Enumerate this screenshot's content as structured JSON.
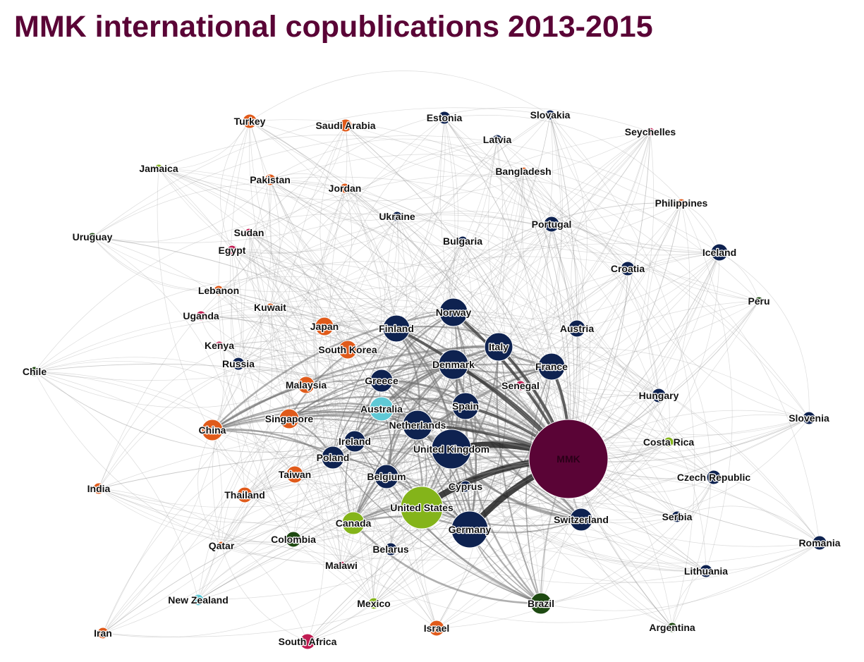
{
  "title": "MMK international copublications 2013-2015",
  "colors": {
    "hub": "#5a0436",
    "europe": "#0e2250",
    "asia": "#e05a1a",
    "americas_north": "#84b41a",
    "americas_south": "#1e4a12",
    "africa": "#c01c52",
    "oceania": "#5fc9d6"
  },
  "nodes": [
    {
      "id": "mmk",
      "label": "MMK",
      "group": "hub",
      "size": 56
    },
    {
      "id": "uk",
      "label": "United Kingdom",
      "group": "europe",
      "size": 28
    },
    {
      "id": "germany",
      "label": "Germany",
      "group": "europe",
      "size": 26
    },
    {
      "id": "us",
      "label": "United States",
      "group": "americas_north",
      "size": 30
    },
    {
      "id": "netherlands",
      "label": "Netherlands",
      "group": "europe",
      "size": 21
    },
    {
      "id": "norway",
      "label": "Norway",
      "group": "europe",
      "size": 20
    },
    {
      "id": "denmark",
      "label": "Denmark",
      "group": "europe",
      "size": 21
    },
    {
      "id": "italy",
      "label": "Italy",
      "group": "europe",
      "size": 20
    },
    {
      "id": "france",
      "label": "France",
      "group": "europe",
      "size": 19
    },
    {
      "id": "spain",
      "label": "Spain",
      "group": "europe",
      "size": 19
    },
    {
      "id": "finland",
      "label": "Finland",
      "group": "europe",
      "size": 19
    },
    {
      "id": "switzerland",
      "label": "Switzerland",
      "group": "europe",
      "size": 16
    },
    {
      "id": "belgium",
      "label": "Belgium",
      "group": "europe",
      "size": 17
    },
    {
      "id": "greece",
      "label": "Greece",
      "group": "europe",
      "size": 16
    },
    {
      "id": "poland",
      "label": "Poland",
      "group": "europe",
      "size": 16
    },
    {
      "id": "ireland",
      "label": "Ireland",
      "group": "europe",
      "size": 15
    },
    {
      "id": "australia",
      "label": "Australia",
      "group": "oceania",
      "size": 17
    },
    {
      "id": "canada",
      "label": "Canada",
      "group": "americas_north",
      "size": 16
    },
    {
      "id": "brazil",
      "label": "Brazil",
      "group": "americas_south",
      "size": 15
    },
    {
      "id": "china",
      "label": "China",
      "group": "asia",
      "size": 15
    },
    {
      "id": "singapore",
      "label": "Singapore",
      "group": "asia",
      "size": 14
    },
    {
      "id": "southkorea",
      "label": "South Korea",
      "group": "asia",
      "size": 13
    },
    {
      "id": "japan",
      "label": "Japan",
      "group": "asia",
      "size": 13
    },
    {
      "id": "malaysia",
      "label": "Malaysia",
      "group": "asia",
      "size": 12
    },
    {
      "id": "taiwan",
      "label": "Taiwan",
      "group": "asia",
      "size": 12
    },
    {
      "id": "thailand",
      "label": "Thailand",
      "group": "asia",
      "size": 11
    },
    {
      "id": "israel",
      "label": "Israel",
      "group": "asia",
      "size": 11
    },
    {
      "id": "southafrica",
      "label": "South Africa",
      "group": "africa",
      "size": 11
    },
    {
      "id": "colombia",
      "label": "Colombia",
      "group": "americas_south",
      "size": 11
    },
    {
      "id": "iceland",
      "label": "Iceland",
      "group": "europe",
      "size": 12
    },
    {
      "id": "austria",
      "label": "Austria",
      "group": "europe",
      "size": 12
    },
    {
      "id": "portugal",
      "label": "Portugal",
      "group": "europe",
      "size": 11
    },
    {
      "id": "hungary",
      "label": "Hungary",
      "group": "europe",
      "size": 10
    },
    {
      "id": "croatia",
      "label": "Croatia",
      "group": "europe",
      "size": 10
    },
    {
      "id": "czech",
      "label": "Czech Republic",
      "group": "europe",
      "size": 10
    },
    {
      "id": "romania",
      "label": "Romania",
      "group": "europe",
      "size": 10
    },
    {
      "id": "slovenia",
      "label": "Slovenia",
      "group": "europe",
      "size": 9
    },
    {
      "id": "lithuania",
      "label": "Lithuania",
      "group": "europe",
      "size": 9
    },
    {
      "id": "serbia",
      "label": "Serbia",
      "group": "europe",
      "size": 8
    },
    {
      "id": "belarus",
      "label": "Belarus",
      "group": "europe",
      "size": 9
    },
    {
      "id": "russia",
      "label": "Russia",
      "group": "europe",
      "size": 9
    },
    {
      "id": "cyprus",
      "label": "Cyprus",
      "group": "europe",
      "size": 8
    },
    {
      "id": "estonia",
      "label": "Estonia",
      "group": "europe",
      "size": 9
    },
    {
      "id": "slovakia",
      "label": "Slovakia",
      "group": "europe",
      "size": 7
    },
    {
      "id": "latvia",
      "label": "Latvia",
      "group": "europe",
      "size": 7
    },
    {
      "id": "ukraine",
      "label": "Ukraine",
      "group": "europe",
      "size": 7
    },
    {
      "id": "bulgaria",
      "label": "Bulgaria",
      "group": "europe",
      "size": 7
    },
    {
      "id": "turkey",
      "label": "Turkey",
      "group": "asia",
      "size": 10
    },
    {
      "id": "saudiarabia",
      "label": "Saudi Arabia",
      "group": "asia",
      "size": 9
    },
    {
      "id": "pakistan",
      "label": "Pakistan",
      "group": "asia",
      "size": 8
    },
    {
      "id": "jordan",
      "label": "Jordan",
      "group": "asia",
      "size": 7
    },
    {
      "id": "bangladesh",
      "label": "Bangladesh",
      "group": "asia",
      "size": 6
    },
    {
      "id": "philippines",
      "label": "Philippines",
      "group": "asia",
      "size": 6
    },
    {
      "id": "lebanon",
      "label": "Lebanon",
      "group": "asia",
      "size": 7
    },
    {
      "id": "kuwait",
      "label": "Kuwait",
      "group": "asia",
      "size": 6
    },
    {
      "id": "india",
      "label": "India",
      "group": "asia",
      "size": 8
    },
    {
      "id": "qatar",
      "label": "Qatar",
      "group": "asia",
      "size": 6
    },
    {
      "id": "iran",
      "label": "Iran",
      "group": "asia",
      "size": 8
    },
    {
      "id": "egypt",
      "label": "Egypt",
      "group": "africa",
      "size": 7
    },
    {
      "id": "sudan",
      "label": "Sudan",
      "group": "africa",
      "size": 6
    },
    {
      "id": "uganda",
      "label": "Uganda",
      "group": "africa",
      "size": 7
    },
    {
      "id": "kenya",
      "label": "Kenya",
      "group": "africa",
      "size": 6
    },
    {
      "id": "senegal",
      "label": "Senegal",
      "group": "africa",
      "size": 7
    },
    {
      "id": "seychelles",
      "label": "Seychelles",
      "group": "africa",
      "size": 6
    },
    {
      "id": "malawi",
      "label": "Malawi",
      "group": "africa",
      "size": 6
    },
    {
      "id": "jamaica",
      "label": "Jamaica",
      "group": "americas_north",
      "size": 6
    },
    {
      "id": "mexico",
      "label": "Mexico",
      "group": "americas_north",
      "size": 8
    },
    {
      "id": "costarica",
      "label": "Costa Rica",
      "group": "americas_north",
      "size": 7
    },
    {
      "id": "uruguay",
      "label": "Uruguay",
      "group": "americas_south",
      "size": 6
    },
    {
      "id": "chile",
      "label": "Chile",
      "group": "americas_south",
      "size": 7
    },
    {
      "id": "peru",
      "label": "Peru",
      "group": "americas_south",
      "size": 6
    },
    {
      "id": "argentina",
      "label": "Argentina",
      "group": "americas_south",
      "size": 7
    },
    {
      "id": "newzealand",
      "label": "New Zealand",
      "group": "oceania",
      "size": 8
    }
  ]
}
